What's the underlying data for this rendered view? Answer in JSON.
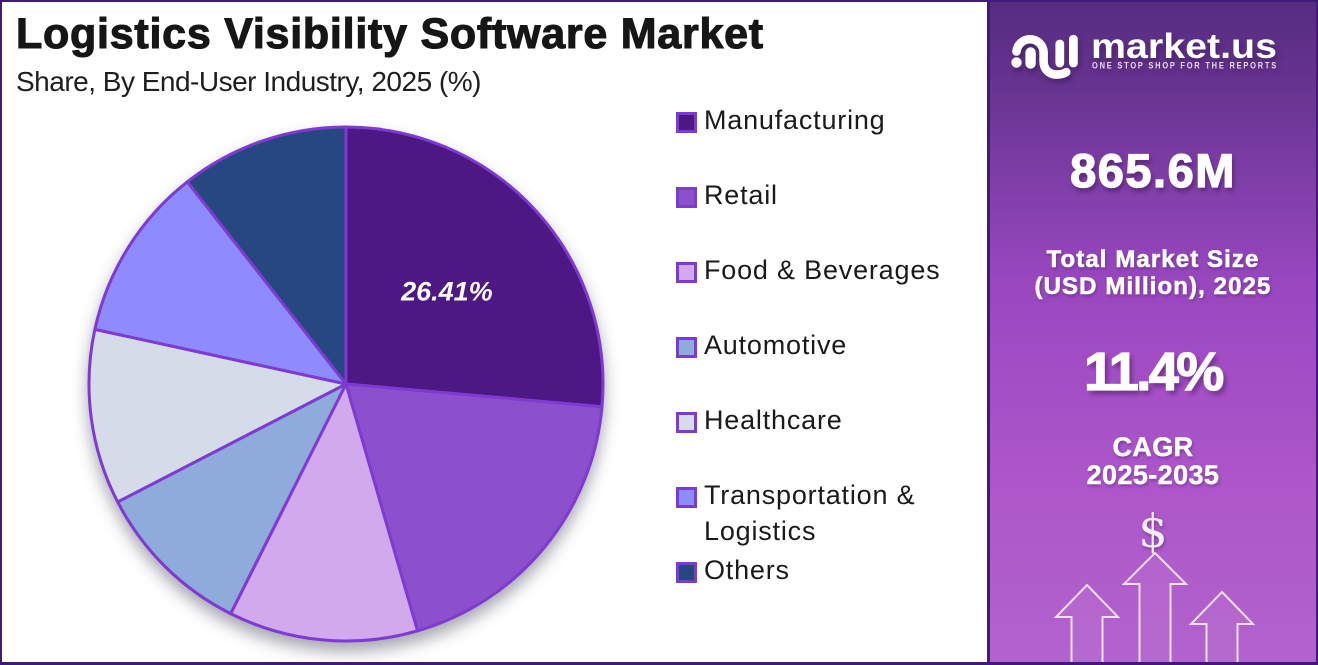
{
  "header": {
    "title": "Logistics Visibility Software Market",
    "subtitle": "Share, By End-User Industry, 2025 (%)"
  },
  "chart_data": {
    "type": "pie",
    "title": "Logistics Visibility Software Market",
    "subtitle": "Share, By End-User Industry, 2025 (%)",
    "unit": "%",
    "legend_position": "right",
    "start_angle": "12 o'clock, clockwise",
    "slices": [
      {
        "label": "Manufacturing",
        "value": 26.41,
        "color": "#4D1784",
        "data_label": "26.41%"
      },
      {
        "label": "Retail",
        "value": 19.1,
        "color": "#8C50CC",
        "data_label": ""
      },
      {
        "label": "Food & Beverages",
        "value": 11.9,
        "color": "#D2A9EC",
        "data_label": ""
      },
      {
        "label": "Automotive",
        "value": 10.0,
        "color": "#8FABDC",
        "data_label": ""
      },
      {
        "label": "Healthcare",
        "value": 11.0,
        "color": "#D5DCE7",
        "data_label": ""
      },
      {
        "label": "Transportation & Logistics",
        "value": 11.0,
        "color": "#8E8BFE",
        "data_label": ""
      },
      {
        "label": "Others",
        "value": 10.59,
        "color": "#26477F",
        "data_label": ""
      }
    ],
    "slice_border_color": "#7E3AD2",
    "shown_data_label": "26.41%"
  },
  "sidebar": {
    "brand": {
      "name": "market.us",
      "tagline": "ONE STOP SHOP FOR THE REPORTS"
    },
    "market_size": {
      "value": "865.6M",
      "label_line1": "Total Market Size",
      "label_line2": "(USD Million), 2025"
    },
    "cagr": {
      "value": "11.4%",
      "label_line1": "CAGR",
      "label_line2": "2025-2035"
    },
    "dollar_symbol": "$",
    "colors": {
      "gradient_top": "#552B80",
      "gradient_bottom": "#B262CD",
      "frame_border": "#3E1B77"
    }
  }
}
